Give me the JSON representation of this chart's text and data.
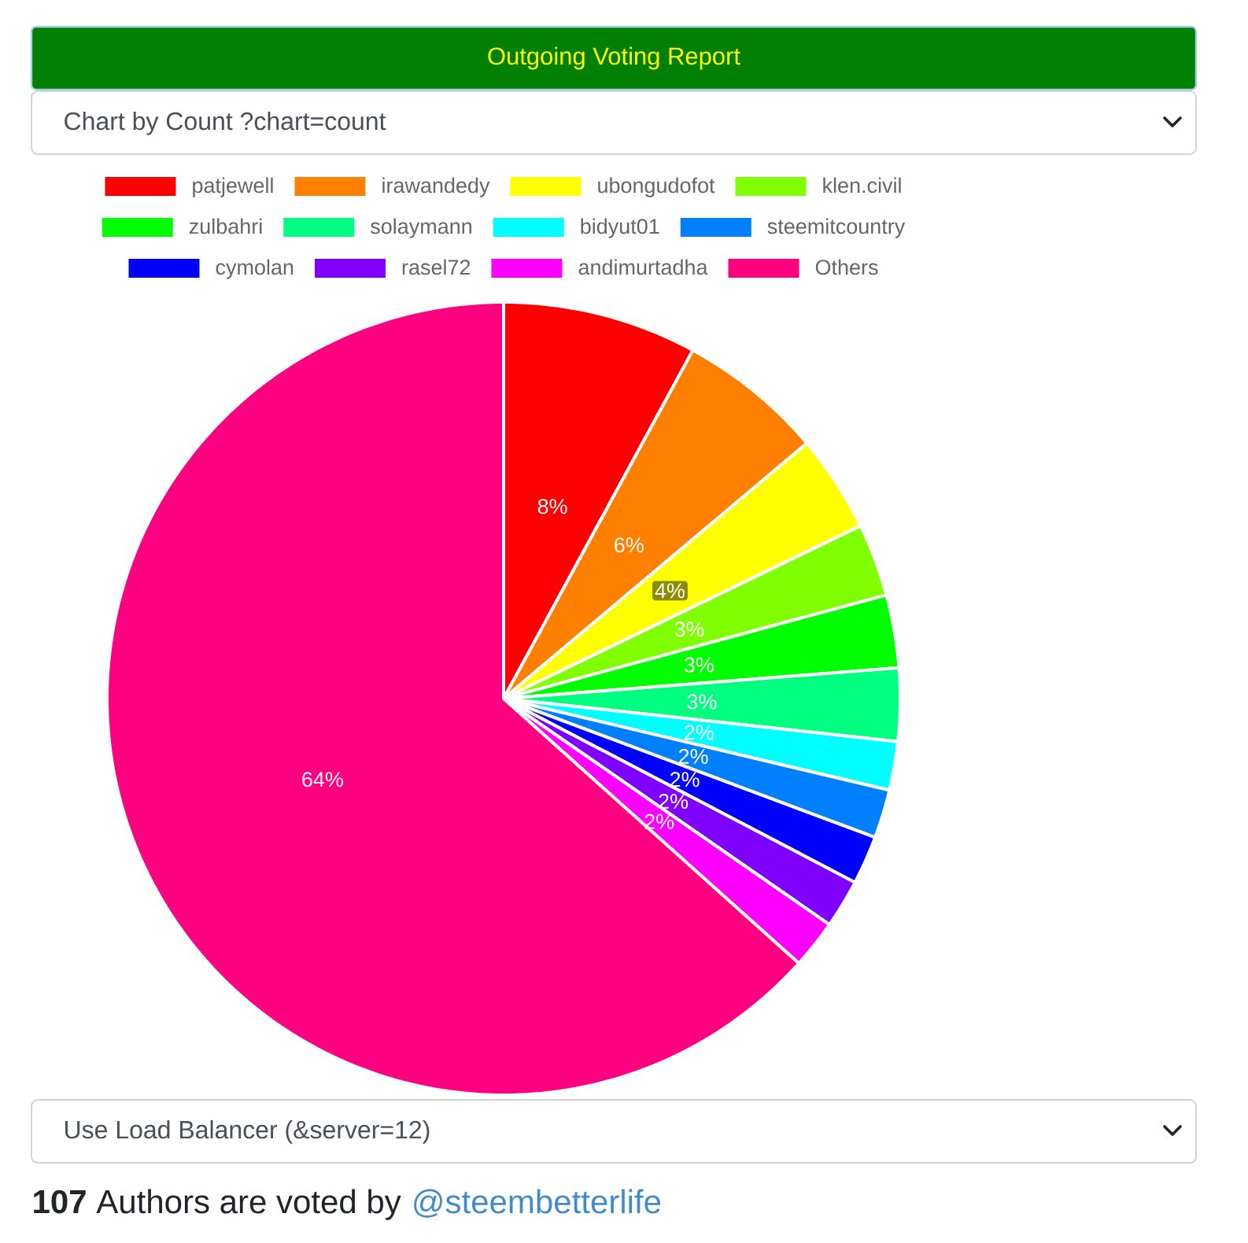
{
  "chart_data": {
    "type": "pie",
    "title": "Outgoing Voting Report",
    "subtitle": "Chart by Count ?chart=count",
    "categories": [
      "patjewell",
      "irawandedy",
      "ubongudofot",
      "klen.civil",
      "zulbahri",
      "solaymann",
      "bidyut01",
      "steemitcountry",
      "cymolan",
      "rasel72",
      "andimurtadha",
      "Others"
    ],
    "values": [
      8,
      6,
      4,
      3,
      3,
      3,
      2,
      2,
      2,
      2,
      2,
      64
    ],
    "colors": [
      "#ff0000",
      "#ff8000",
      "#ffff00",
      "#80ff00",
      "#00ff00",
      "#00ff80",
      "#00ffff",
      "#0080ff",
      "#0000ff",
      "#8000ff",
      "#ff00ff",
      "#ff0080"
    ],
    "value_labels": [
      "8%",
      "6%",
      "4%",
      "3%",
      "3%",
      "3%",
      "2%",
      "2%",
      "2%",
      "2%",
      "2%",
      "64%"
    ],
    "legend": "top",
    "annotations": [
      "Use Load Balancer (&server=12)",
      "**107** Authors are voted by",
      "@steembetterlife"
    ]
  }
}
